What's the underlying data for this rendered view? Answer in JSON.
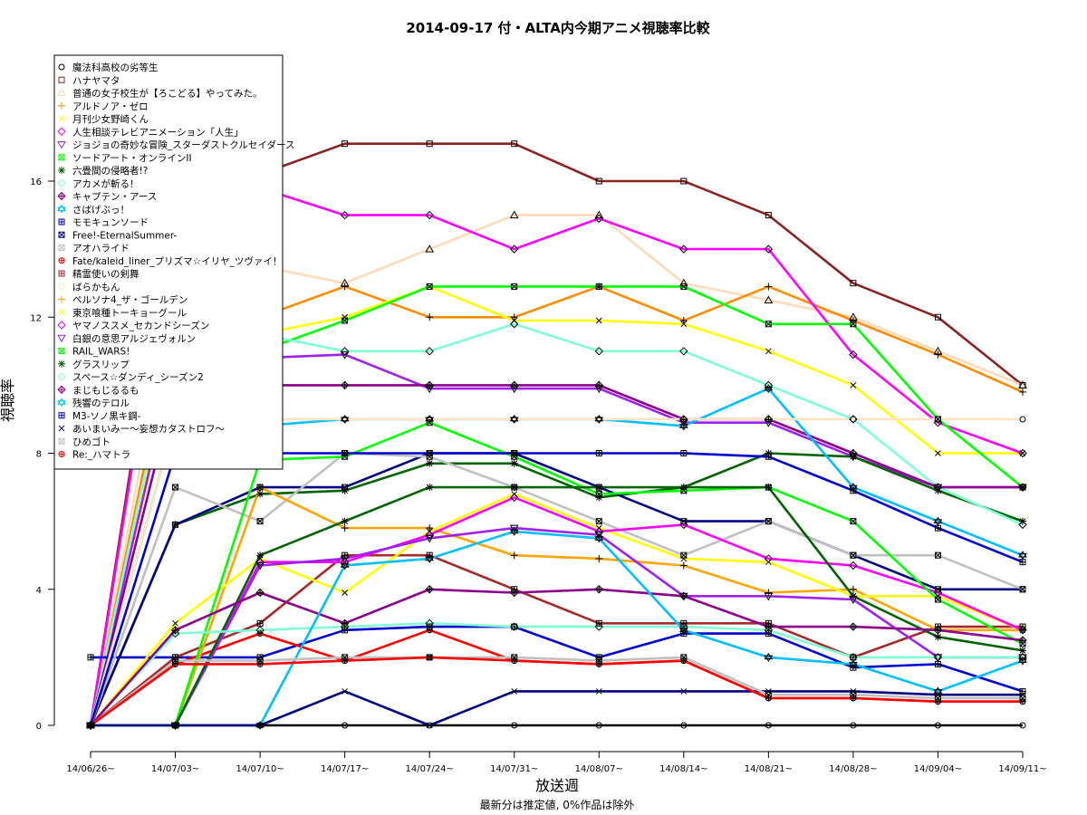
{
  "chart_data": {
    "type": "line",
    "title": "2014-09-17 付・ALTA内今期アニメ視聴率比較",
    "xlabel": "放送週",
    "ylabel": "視聴率",
    "subtitle": "最新分は推定値, 0%作品は除外",
    "categories": [
      "14/06/26~",
      "14/07/03~",
      "14/07/10~",
      "14/07/17~",
      "14/07/24~",
      "14/07/31~",
      "14/08/07~",
      "14/08/14~",
      "14/08/21~",
      "14/08/28~",
      "14/09/04~",
      "14/09/11~"
    ],
    "yticks": [
      0,
      4,
      8,
      12,
      16
    ],
    "ylim": [
      -0.7,
      18.3
    ],
    "legend_position": "top-left",
    "series": [
      {
        "name": "魔法科高校の劣等生",
        "color": "#000000",
        "symbol": "circle",
        "values": [
          0,
          0,
          0,
          0,
          0,
          0,
          0,
          0,
          0,
          0,
          0,
          0
        ]
      },
      {
        "name": "ハナヤマタ",
        "color": "#8B2323",
        "symbol": "square",
        "values": [
          0,
          16,
          16.2,
          17.1,
          17.1,
          17.1,
          16,
          16,
          15,
          13,
          12,
          10
        ]
      },
      {
        "name": "普通の女子校生が【ろこどる】やってみた。",
        "color": "#FFDAB9",
        "symbol": "triangle",
        "values": [
          0,
          13,
          13.5,
          13,
          14,
          15,
          15,
          13,
          12.5,
          12,
          11,
          10
        ]
      },
      {
        "name": "アルドノア・ゼロ",
        "color": "#FF8C00",
        "symbol": "plus",
        "values": [
          0,
          12,
          12,
          12.9,
          12,
          12,
          12.9,
          11.9,
          12.9,
          11.9,
          10.9,
          9.8
        ]
      },
      {
        "name": "月刊少女野崎くん",
        "color": "#FFFF00",
        "symbol": "cross",
        "values": [
          0,
          11,
          11.5,
          12,
          12.9,
          11.9,
          11.9,
          11.8,
          11,
          10,
          8,
          8
        ]
      },
      {
        "name": "人生相談テレビアニメーション「人生」",
        "color": "#FF00FF",
        "symbol": "diamond",
        "values": [
          0,
          15.5,
          15.8,
          15,
          15,
          14,
          14.9,
          14,
          14,
          10.9,
          8.9,
          8
        ]
      },
      {
        "name": "ジョジョの奇妙な冒険_スターダストクルセイダース",
        "color": "#A020F0",
        "symbol": "triangle-down",
        "values": [
          0,
          10.8,
          10.8,
          10.9,
          9.9,
          9.9,
          9.9,
          8.9,
          8.9,
          7.9,
          7,
          7
        ]
      },
      {
        "name": "ソードアート・オンラインII",
        "color": "#00FF00",
        "symbol": "square-x",
        "values": [
          0,
          9,
          11,
          11.9,
          12.9,
          12.9,
          12.9,
          12.9,
          11.8,
          11.8,
          9,
          7
        ]
      },
      {
        "name": "六畳間の侵略者!?",
        "color": "#006400",
        "symbol": "asterisk",
        "values": [
          0,
          5.9,
          6.8,
          6.9,
          7.7,
          7.7,
          6.7,
          7,
          8,
          7.9,
          6.9,
          6
        ]
      },
      {
        "name": "アカメが斬る！",
        "color": "#7FFFD4",
        "symbol": "diamond",
        "values": [
          0,
          11.5,
          11.5,
          11,
          11,
          11.8,
          11,
          11,
          10,
          9,
          7,
          5.9
        ]
      },
      {
        "name": "キャプテン・アース",
        "color": "#8B008B",
        "symbol": "diamond-plus",
        "values": [
          0,
          10,
          10,
          10,
          10,
          10,
          10,
          9,
          9,
          8,
          7,
          7
        ]
      },
      {
        "name": "さばげぶっ！",
        "color": "#00BFFF",
        "symbol": "star",
        "values": [
          0,
          9,
          8.8,
          9,
          9,
          9,
          9,
          8.8,
          9.9,
          7,
          6,
          5
        ]
      },
      {
        "name": "モモキュンソード",
        "color": "#0000CD",
        "symbol": "square-plus",
        "values": [
          2,
          2,
          2,
          2.8,
          2.9,
          2.9,
          2,
          2.7,
          2.7,
          1.7,
          1.8,
          1
        ]
      },
      {
        "name": "Free!-EternalSummer-",
        "color": "#000080",
        "symbol": "square-x",
        "values": [
          0,
          5.9,
          7,
          7,
          8,
          8,
          7,
          6,
          6,
          5,
          4,
          4
        ]
      },
      {
        "name": "アオハライド",
        "color": "#C0C0C0",
        "symbol": "square-x",
        "values": [
          0,
          7,
          6,
          8,
          7.9,
          7,
          6,
          5,
          6,
          5,
          5,
          4
        ]
      },
      {
        "name": "Fate/kaleid_liner_プリズマ☆イリヤ_ツヴァイ！",
        "color": "#FF0000",
        "symbol": "circle-plus",
        "values": [
          0,
          1.8,
          2.7,
          1.9,
          2.8,
          1.9,
          1.8,
          1.9,
          0.8,
          0.8,
          0.7,
          0.7
        ]
      },
      {
        "name": "精霊使いの剣舞",
        "color": "#A52A2A",
        "symbol": "square-plus",
        "values": [
          0,
          2,
          3,
          5,
          5,
          4,
          3,
          3,
          3,
          2,
          2.9,
          2.9
        ]
      },
      {
        "name": "ばらかもん",
        "color": "#FFE4C4",
        "symbol": "circle",
        "values": [
          0,
          9,
          9,
          9,
          9,
          9,
          9,
          9,
          9,
          9,
          9,
          9
        ]
      },
      {
        "name": "ペルソナ4_ザ・ゴールデン",
        "color": "#FFA500",
        "symbol": "plus",
        "values": [
          0,
          0,
          7,
          5.8,
          5.8,
          5,
          4.9,
          4.7,
          3.9,
          4,
          2.8,
          2.8
        ]
      },
      {
        "name": "東京喰種トーキョーグール",
        "color": "#FFFF00",
        "symbol": "cross",
        "values": [
          0,
          3,
          4.9,
          3.9,
          5.7,
          6.8,
          5.8,
          4.9,
          4.8,
          3.8,
          3.8,
          2.8
        ]
      },
      {
        "name": "ヤマノススメ_セカンドシーズン",
        "color": "#FF00FF",
        "symbol": "diamond",
        "values": [
          0,
          0,
          4.8,
          4.8,
          5.6,
          6.7,
          5.7,
          5.9,
          4.9,
          4.7,
          3.9,
          2.8
        ]
      },
      {
        "name": "白銀の意思アルジェヴォルン",
        "color": "#A020F0",
        "symbol": "triangle-down",
        "values": [
          0,
          0,
          4.7,
          4.9,
          5.5,
          5.8,
          5.6,
          3.8,
          3.8,
          3.7,
          2,
          2
        ]
      },
      {
        "name": "RAIL_WARS!",
        "color": "#00FF00",
        "symbol": "square-x",
        "values": [
          0,
          0,
          7.8,
          7.9,
          8.9,
          7.9,
          6.8,
          6.9,
          7,
          6,
          3.7,
          2.4
        ]
      },
      {
        "name": "グラスリップ",
        "color": "#006400",
        "symbol": "asterisk",
        "values": [
          0,
          0,
          5,
          6,
          7,
          7,
          7,
          7,
          7,
          3.8,
          2.6,
          2.2
        ]
      },
      {
        "name": "スペース☆ダンディ_シーズン2",
        "color": "#7FFFD4",
        "symbol": "diamond",
        "values": [
          0,
          2.7,
          2.8,
          2.9,
          3,
          2.9,
          2.9,
          2.9,
          2.8,
          2,
          2,
          2
        ]
      },
      {
        "name": "まじもじるるも",
        "color": "#8B008B",
        "symbol": "diamond-plus",
        "values": [
          0,
          2.8,
          3.9,
          3,
          4,
          3.9,
          4,
          3.8,
          2.9,
          2.9,
          2.8,
          2.5
        ]
      },
      {
        "name": "残響のテロル",
        "color": "#00BFFF",
        "symbol": "star",
        "values": [
          0,
          0,
          0,
          4.7,
          4.9,
          5.7,
          5.5,
          2.8,
          2,
          1.8,
          1,
          1.9
        ]
      },
      {
        "name": "M3-ソノ黒キ鋼-",
        "color": "#0000CD",
        "symbol": "square-plus",
        "values": [
          0,
          8,
          8,
          8,
          8,
          8,
          8,
          8,
          7.9,
          6.9,
          5.8,
          4.8
        ]
      },
      {
        "name": "あいまいみー～妄想カタストロフ～",
        "color": "#000080",
        "symbol": "cross",
        "values": [
          0,
          0,
          0,
          1,
          0,
          1,
          1,
          1,
          1,
          1,
          0.9,
          0.9
        ]
      },
      {
        "name": "ひめゴト",
        "color": "#C0C0C0",
        "symbol": "square-x",
        "values": [
          0,
          1.9,
          1.9,
          2,
          2,
          2,
          1.9,
          2,
          0.9,
          0.9,
          0.8,
          0.8
        ]
      },
      {
        "name": "Re:_ハマトラ",
        "color": "#FF0000",
        "symbol": "circle-plus",
        "values": [
          0,
          1.8,
          1.8,
          1.9,
          2,
          1.9,
          1.8,
          1.9,
          0.8,
          0.8,
          0.7,
          0.7
        ]
      }
    ]
  }
}
